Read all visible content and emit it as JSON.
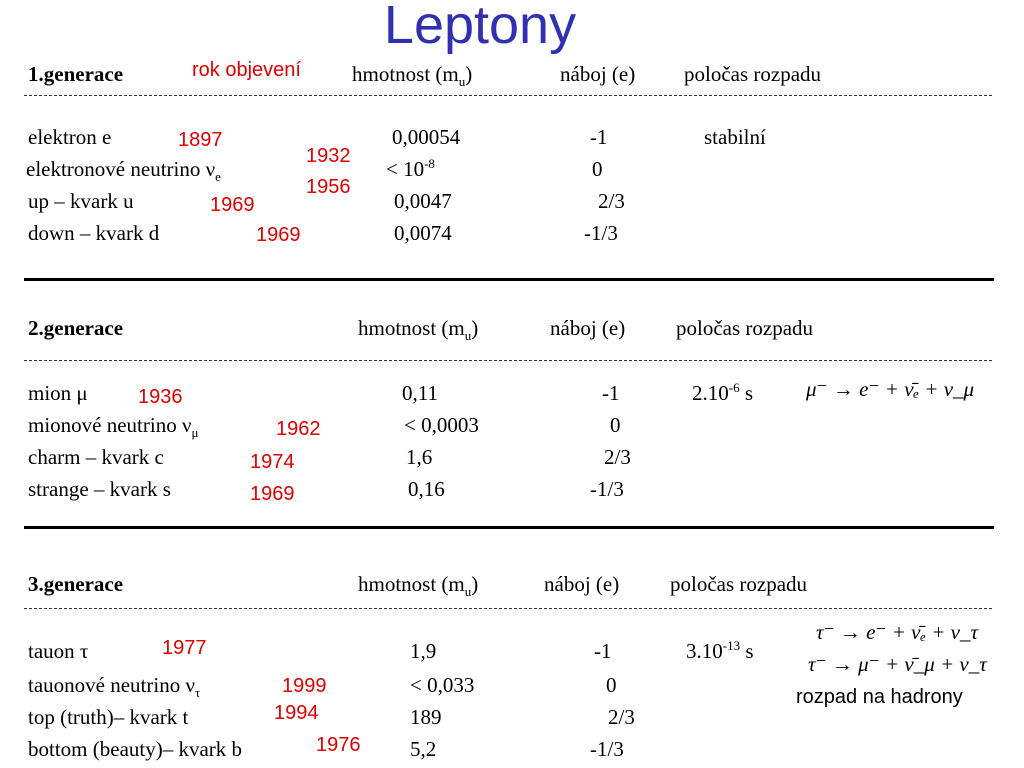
{
  "title": "Leptony",
  "rok_objeveni": "rok objevení",
  "generations": [
    {
      "heading": "1.generace",
      "columns": {
        "mass": "hmotnost (m",
        "mass_sub": "u",
        "mass_close": ")",
        "charge": "náboj (e)",
        "halflife": "poločas rozpadu"
      },
      "rows": [
        {
          "name": "elektron e",
          "year": "1897",
          "mass": "0,00054",
          "charge": "-1",
          "halflife": "stabilní"
        },
        {
          "name": "elektronové neutrino  ν",
          "name_sub": "e",
          "year": "1932",
          "year2": "1956",
          "mass": "< 10",
          "mass_sup": "-8",
          "charge": "0"
        },
        {
          "name": "up – kvark u",
          "year": "1969",
          "mass": "0,0047",
          "charge": "2/3"
        },
        {
          "name": "down – kvark d",
          "year": "1969",
          "mass": "0,0074",
          "charge": "-1/3"
        }
      ]
    },
    {
      "heading": "2.generace",
      "columns": {
        "mass": "hmotnost (m",
        "mass_sub": "u",
        "mass_close": ")",
        "charge": "náboj (e)",
        "halflife": "poločas rozpadu"
      },
      "rows": [
        {
          "name": "mion μ",
          "year": "1936",
          "mass": "0,11",
          "charge": "-1",
          "halflife": "2.10",
          "halflife_sup": "-6",
          "halflife_unit": " s"
        },
        {
          "name": "mionové neutrino ν",
          "name_sub": "μ",
          "year": "1962",
          "mass": "< 0,0003",
          "charge": "0"
        },
        {
          "name": "charm – kvark c",
          "year": "1974",
          "mass": "1,6",
          "charge": "2/3"
        },
        {
          "name": "strange – kvark s",
          "year": "1969",
          "mass": "0,16",
          "charge": "-1/3"
        }
      ],
      "decays": [
        "μ⁻ → e⁻ + ν̄ₑ + ν_μ"
      ]
    },
    {
      "heading": "3.generace",
      "columns": {
        "mass": "hmotnost (m",
        "mass_sub": "u",
        "mass_close": ")",
        "charge": "náboj (e)",
        "halflife": "poločas rozpadu"
      },
      "rows": [
        {
          "name": "tauon τ",
          "year": "1977",
          "mass": "1,9",
          "charge": "-1",
          "halflife": "3.10",
          "halflife_sup": "-13",
          "halflife_unit": " s"
        },
        {
          "name": "tauonové neutrino ν",
          "name_sub": "τ",
          "year": "1999",
          "mass": "< 0,033",
          "charge": "0"
        },
        {
          "name": "top (truth)– kvark t",
          "year": "1994",
          "mass": "189",
          "charge": "2/3"
        },
        {
          "name": "bottom (beauty)– kvark b",
          "year": "1976",
          "mass": "5,2",
          "charge": "-1/3"
        }
      ],
      "decays": [
        "τ⁻ → e⁻ + ν̄ₑ + ν_τ",
        "τ⁻ → μ⁻ + ν̄_μ + ν_τ"
      ],
      "note": "rozpad na hadrony"
    }
  ]
}
